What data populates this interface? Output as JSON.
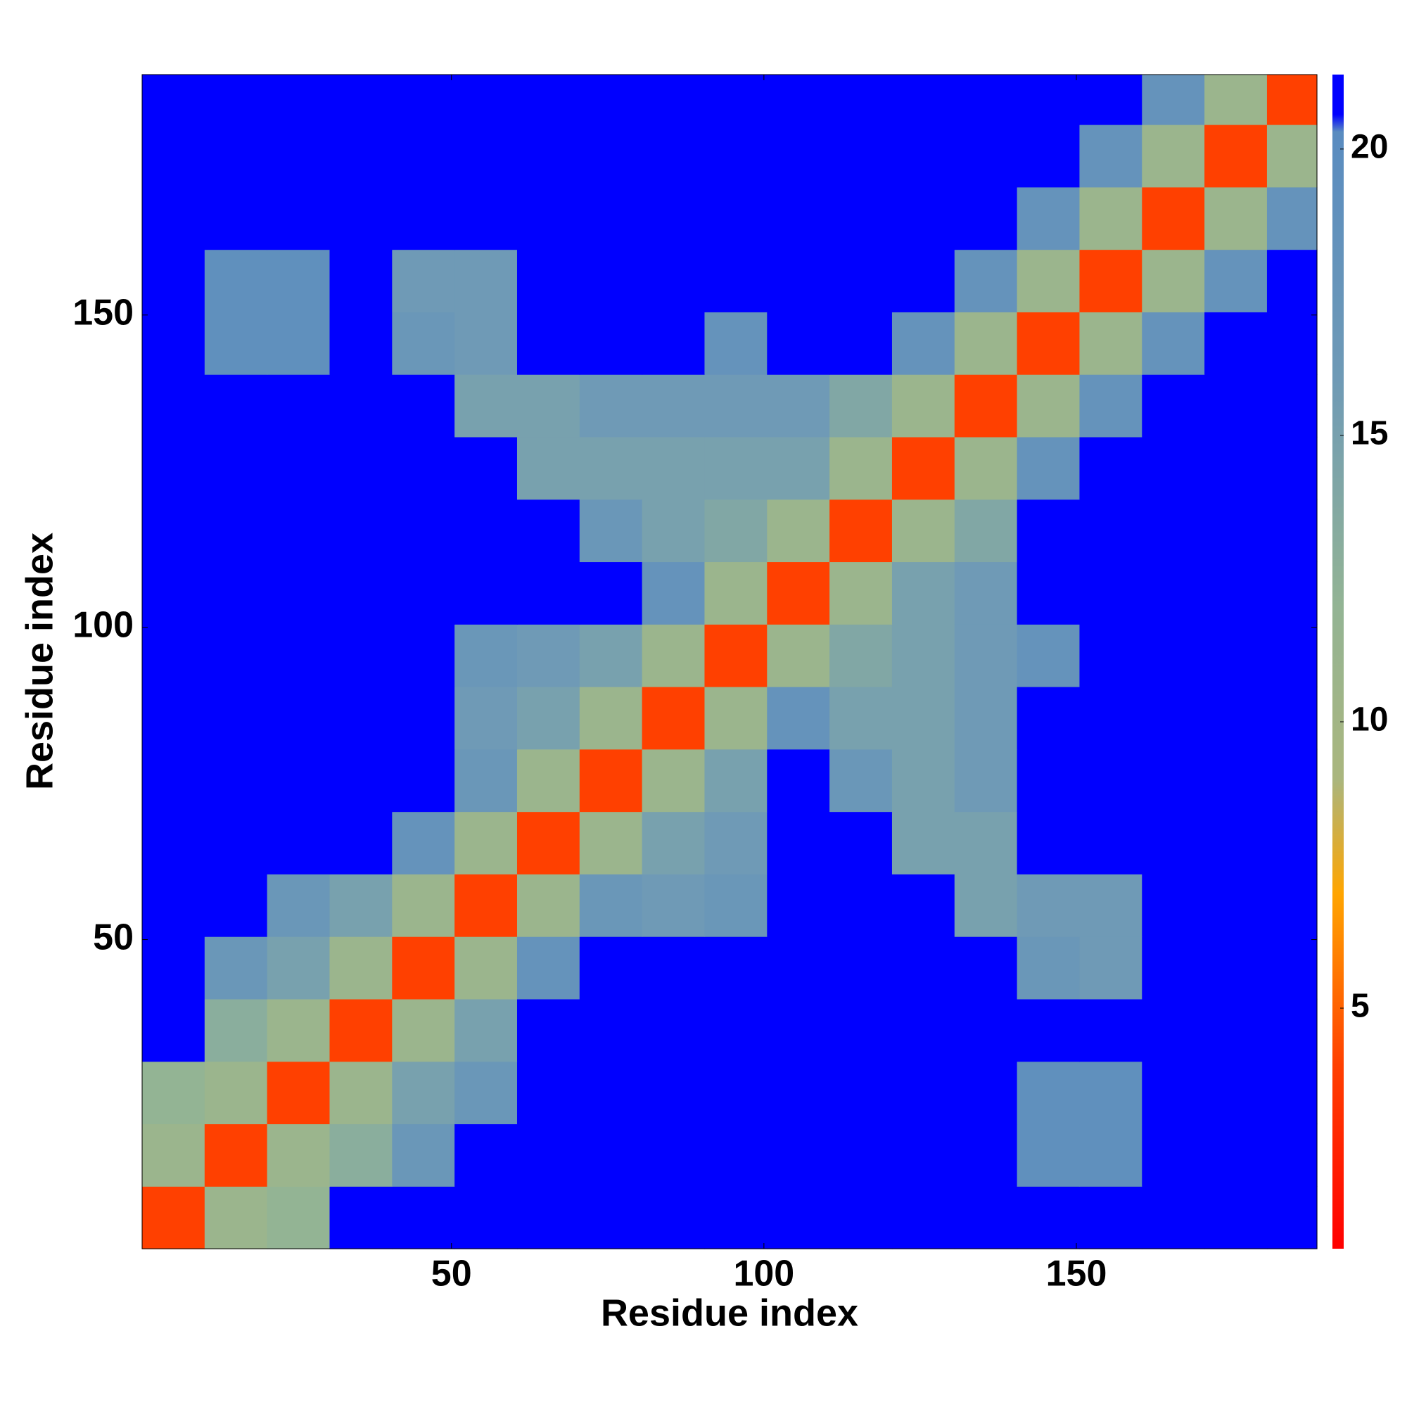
{
  "chart_data": {
    "type": "heatmap",
    "x_label": "Residue index",
    "y_label": "Residue index",
    "xbins": [
      0.5,
      10.5,
      20.5,
      30.5,
      40.5,
      50.5,
      60.5,
      70.5,
      80.5,
      90.5,
      100.5,
      110.5,
      120.5,
      130.5,
      140.5,
      150.5,
      160.5,
      170.5,
      180.5,
      188.5
    ],
    "ybins": [
      0.5,
      10.5,
      20.5,
      30.5,
      40.5,
      50.5,
      60.5,
      70.5,
      80.5,
      90.5,
      100.5,
      110.5,
      120.5,
      130.5,
      140.5,
      150.5,
      160.5,
      170.5,
      180.5,
      188.5
    ],
    "z": [
      [
        4,
        11,
        12,
        21,
        21,
        21,
        21,
        21,
        21,
        21,
        21,
        21,
        21,
        21,
        21,
        21,
        21,
        21,
        21
      ],
      [
        11,
        4,
        11,
        13,
        17,
        21,
        21,
        21,
        21,
        21,
        21,
        21,
        21,
        21,
        19,
        19,
        21,
        21,
        21
      ],
      [
        12,
        11,
        4,
        11,
        15,
        17,
        21,
        21,
        21,
        21,
        21,
        21,
        21,
        21,
        19,
        19,
        21,
        21,
        21
      ],
      [
        21,
        13,
        11,
        4,
        11,
        15,
        21,
        21,
        21,
        21,
        21,
        21,
        21,
        21,
        21,
        21,
        21,
        21,
        21
      ],
      [
        21,
        17,
        15,
        11,
        4,
        11,
        18,
        21,
        21,
        21,
        21,
        21,
        21,
        21,
        17,
        16,
        21,
        21,
        21
      ],
      [
        21,
        21,
        17,
        15,
        11,
        4,
        11,
        17,
        16,
        17,
        21,
        21,
        21,
        15,
        16,
        16,
        21,
        21,
        21
      ],
      [
        21,
        21,
        21,
        21,
        18,
        11,
        4,
        11,
        15,
        16,
        21,
        21,
        15,
        15,
        21,
        21,
        21,
        21,
        21
      ],
      [
        21,
        21,
        21,
        21,
        21,
        17,
        11,
        4,
        11,
        15,
        21,
        17,
        15,
        16,
        21,
        21,
        21,
        21,
        21
      ],
      [
        21,
        21,
        21,
        21,
        21,
        16,
        15,
        11,
        4,
        11,
        18,
        15,
        15,
        16,
        21,
        21,
        21,
        21,
        21
      ],
      [
        21,
        21,
        21,
        21,
        21,
        17,
        16,
        15,
        11,
        4,
        11,
        14,
        15,
        16,
        18,
        21,
        21,
        21,
        21
      ],
      [
        21,
        21,
        21,
        21,
        21,
        21,
        21,
        21,
        18,
        11,
        4,
        11,
        15,
        16,
        21,
        21,
        21,
        21,
        21
      ],
      [
        21,
        21,
        21,
        21,
        21,
        21,
        21,
        17,
        15,
        14,
        11,
        4,
        11,
        14,
        21,
        21,
        21,
        21,
        21
      ],
      [
        21,
        21,
        21,
        21,
        21,
        21,
        15,
        15,
        15,
        15,
        15,
        11,
        4,
        11,
        18,
        21,
        21,
        21,
        21
      ],
      [
        21,
        21,
        21,
        21,
        21,
        15,
        15,
        16,
        16,
        16,
        16,
        14,
        11,
        4,
        11,
        18,
        21,
        21,
        21
      ],
      [
        21,
        19,
        19,
        21,
        17,
        16,
        21,
        21,
        21,
        18,
        21,
        21,
        18,
        11,
        4,
        11,
        18,
        21,
        21
      ],
      [
        21,
        19,
        19,
        21,
        16,
        16,
        21,
        21,
        21,
        21,
        21,
        21,
        21,
        18,
        11,
        4,
        11,
        18,
        21
      ],
      [
        21,
        21,
        21,
        21,
        21,
        21,
        21,
        21,
        21,
        21,
        21,
        21,
        21,
        21,
        18,
        11,
        4,
        11,
        18
      ],
      [
        21,
        21,
        21,
        21,
        21,
        21,
        21,
        21,
        21,
        21,
        21,
        21,
        21,
        21,
        21,
        18,
        11,
        4,
        11
      ],
      [
        21,
        21,
        21,
        21,
        21,
        21,
        21,
        21,
        21,
        21,
        21,
        21,
        21,
        21,
        21,
        21,
        18,
        11,
        4
      ]
    ],
    "xlim": [
      0.5,
      188.5
    ],
    "ylim": [
      0.5,
      188.5
    ],
    "xticks": [
      50,
      100,
      150
    ],
    "yticks": [
      50,
      100,
      150
    ],
    "zlim": [
      0.8,
      21.3
    ],
    "zticks": [
      5,
      10,
      15,
      20
    ],
    "colorscale": [
      [
        0.8,
        "#ff0000"
      ],
      [
        4,
        "#ff4000"
      ],
      [
        7,
        "#ffa500"
      ],
      [
        9,
        "#aab67e"
      ],
      [
        12,
        "#93b494"
      ],
      [
        16,
        "#6f9ab6"
      ],
      [
        20.3,
        "#5a8cc0"
      ],
      [
        20.6,
        "#0000ff"
      ]
    ]
  }
}
